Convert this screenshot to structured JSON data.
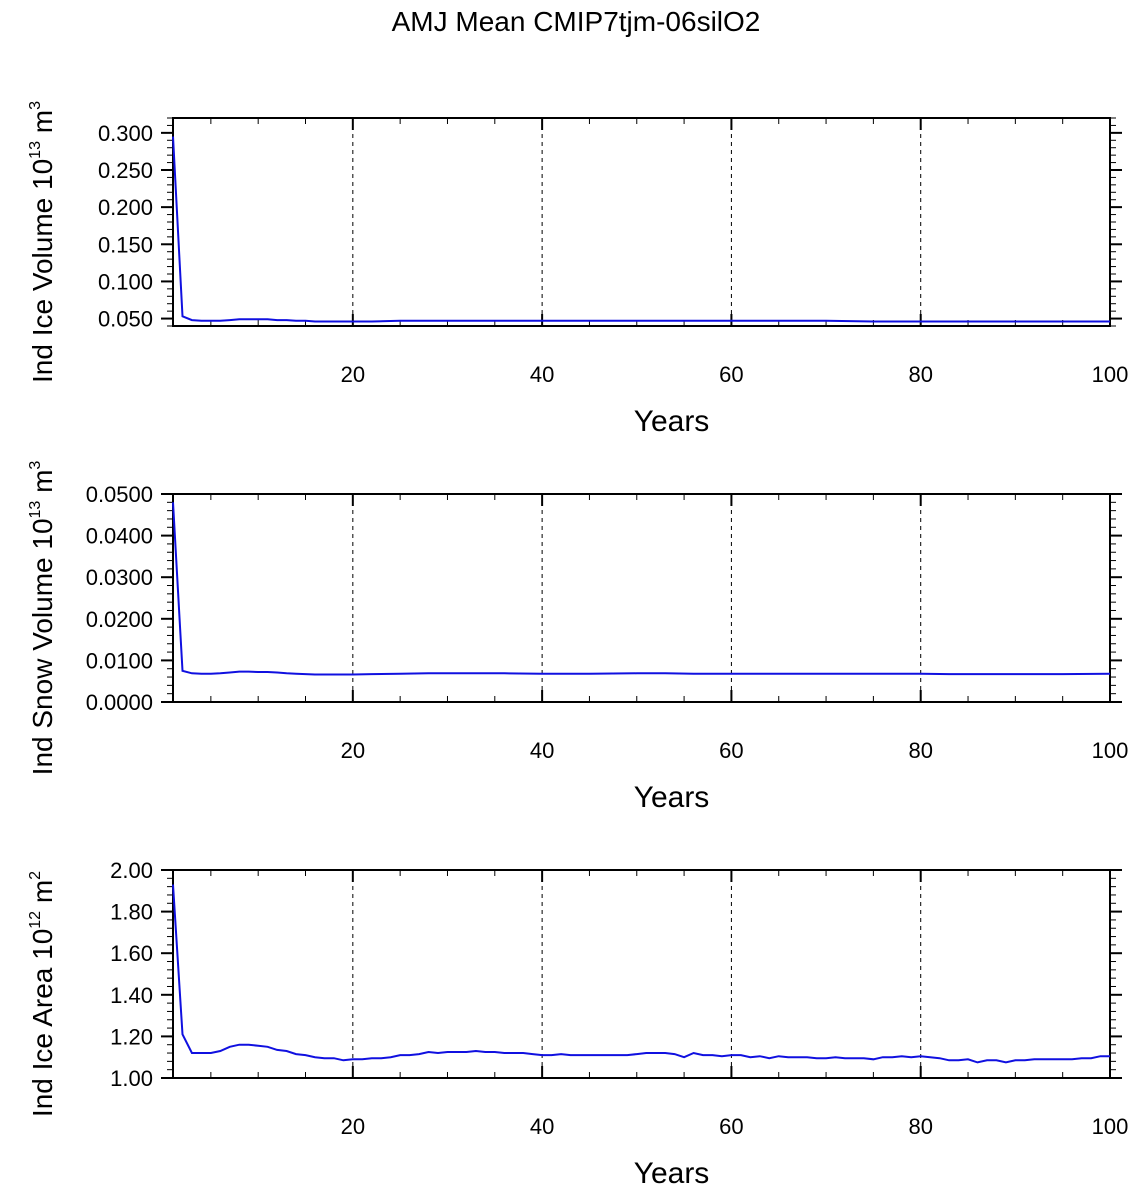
{
  "title": "AMJ Mean CMIP7tjm-06silO2",
  "colors": {
    "line": "#1010e0",
    "axis": "#000000",
    "grid": "#000000"
  },
  "chart_data": [
    {
      "type": "line",
      "ylabel": {
        "main": "Ind Ice Volume 10",
        "sup": "13",
        "unit": " m",
        "unit_sup": "3"
      },
      "xlabel": "Years",
      "xlim": [
        1,
        100
      ],
      "ylim": [
        0.04,
        0.32
      ],
      "xticks": [
        "20",
        "40",
        "60",
        "80",
        "100"
      ],
      "xtick_values": [
        20,
        40,
        60,
        80,
        100
      ],
      "yticks": [
        "0.050",
        "0.100",
        "0.150",
        "0.200",
        "0.250",
        "0.300"
      ],
      "ytick_values": [
        0.05,
        0.1,
        0.15,
        0.2,
        0.25,
        0.3
      ],
      "grid": "vertical dashed at x ticks",
      "x": [
        1,
        2,
        3,
        4,
        5,
        6,
        7,
        8,
        9,
        10,
        11,
        12,
        13,
        14,
        15,
        16,
        17,
        18,
        19,
        20,
        22,
        25,
        28,
        30,
        33,
        36,
        40,
        45,
        50,
        53,
        56,
        60,
        65,
        70,
        75,
        80,
        83,
        86,
        90,
        95,
        100
      ],
      "values": [
        0.295,
        0.053,
        0.048,
        0.047,
        0.047,
        0.047,
        0.048,
        0.049,
        0.049,
        0.049,
        0.049,
        0.048,
        0.048,
        0.047,
        0.047,
        0.046,
        0.046,
        0.046,
        0.046,
        0.046,
        0.046,
        0.047,
        0.047,
        0.047,
        0.047,
        0.047,
        0.047,
        0.047,
        0.047,
        0.047,
        0.047,
        0.047,
        0.047,
        0.047,
        0.046,
        0.046,
        0.046,
        0.046,
        0.046,
        0.046,
        0.046
      ]
    },
    {
      "type": "line",
      "ylabel": {
        "main": "Ind Snow Volume 10",
        "sup": "13",
        "unit": " m",
        "unit_sup": "3"
      },
      "xlabel": "Years",
      "xlim": [
        1,
        100
      ],
      "ylim": [
        0.0,
        0.05
      ],
      "xticks": [
        "20",
        "40",
        "60",
        "80",
        "100"
      ],
      "xtick_values": [
        20,
        40,
        60,
        80,
        100
      ],
      "yticks": [
        "0.0000",
        "0.0100",
        "0.0200",
        "0.0300",
        "0.0400",
        "0.0500"
      ],
      "ytick_values": [
        0.0,
        0.01,
        0.02,
        0.03,
        0.04,
        0.05
      ],
      "grid": "vertical dashed at x ticks",
      "x": [
        1,
        2,
        3,
        4,
        5,
        6,
        7,
        8,
        9,
        10,
        11,
        12,
        13,
        14,
        15,
        16,
        17,
        18,
        19,
        20,
        22,
        25,
        28,
        30,
        33,
        36,
        40,
        45,
        50,
        53,
        56,
        60,
        65,
        70,
        75,
        80,
        83,
        86,
        90,
        95,
        100
      ],
      "values": [
        0.048,
        0.0075,
        0.0069,
        0.0068,
        0.0068,
        0.0069,
        0.0071,
        0.0073,
        0.0073,
        0.0072,
        0.0072,
        0.0071,
        0.0069,
        0.0068,
        0.0067,
        0.0066,
        0.0066,
        0.0066,
        0.0066,
        0.0066,
        0.0067,
        0.0068,
        0.0069,
        0.0069,
        0.0069,
        0.0069,
        0.0068,
        0.0068,
        0.0069,
        0.0069,
        0.0068,
        0.0068,
        0.0068,
        0.0068,
        0.0068,
        0.0068,
        0.0067,
        0.0067,
        0.0067,
        0.0067,
        0.0068
      ]
    },
    {
      "type": "line",
      "ylabel": {
        "main": "Ind Ice Area 10",
        "sup": "12",
        "unit": " m",
        "unit_sup": "2"
      },
      "xlabel": "Years",
      "xlim": [
        1,
        100
      ],
      "ylim": [
        1.0,
        2.0
      ],
      "xticks": [
        "20",
        "40",
        "60",
        "80",
        "100"
      ],
      "xtick_values": [
        20,
        40,
        60,
        80,
        100
      ],
      "yticks": [
        "1.00",
        "1.20",
        "1.40",
        "1.60",
        "1.80",
        "2.00"
      ],
      "ytick_values": [
        1.0,
        1.2,
        1.4,
        1.6,
        1.8,
        2.0
      ],
      "grid": "vertical dashed at x ticks",
      "x": [
        1,
        2,
        3,
        4,
        5,
        6,
        7,
        8,
        9,
        10,
        11,
        12,
        13,
        14,
        15,
        16,
        17,
        18,
        19,
        20,
        21,
        22,
        23,
        24,
        25,
        26,
        27,
        28,
        29,
        30,
        31,
        32,
        33,
        34,
        35,
        36,
        37,
        38,
        39,
        40,
        41,
        42,
        43,
        44,
        45,
        46,
        47,
        48,
        49,
        50,
        51,
        52,
        53,
        54,
        55,
        56,
        57,
        58,
        59,
        60,
        61,
        62,
        63,
        64,
        65,
        66,
        67,
        68,
        69,
        70,
        71,
        72,
        73,
        74,
        75,
        76,
        77,
        78,
        79,
        80,
        81,
        82,
        83,
        84,
        85,
        86,
        87,
        88,
        89,
        90,
        91,
        92,
        93,
        94,
        95,
        96,
        97,
        98,
        99,
        100
      ],
      "values": [
        1.93,
        1.21,
        1.12,
        1.12,
        1.12,
        1.13,
        1.15,
        1.16,
        1.16,
        1.155,
        1.15,
        1.135,
        1.13,
        1.115,
        1.11,
        1.1,
        1.095,
        1.095,
        1.085,
        1.09,
        1.09,
        1.095,
        1.095,
        1.1,
        1.11,
        1.11,
        1.115,
        1.125,
        1.12,
        1.125,
        1.125,
        1.125,
        1.13,
        1.125,
        1.125,
        1.12,
        1.12,
        1.12,
        1.115,
        1.11,
        1.11,
        1.115,
        1.11,
        1.11,
        1.11,
        1.11,
        1.11,
        1.11,
        1.11,
        1.115,
        1.12,
        1.12,
        1.12,
        1.115,
        1.1,
        1.12,
        1.11,
        1.11,
        1.105,
        1.11,
        1.11,
        1.1,
        1.105,
        1.095,
        1.105,
        1.1,
        1.1,
        1.1,
        1.095,
        1.095,
        1.1,
        1.095,
        1.095,
        1.095,
        1.09,
        1.1,
        1.1,
        1.105,
        1.1,
        1.105,
        1.1,
        1.095,
        1.085,
        1.085,
        1.09,
        1.075,
        1.085,
        1.085,
        1.075,
        1.085,
        1.085,
        1.09,
        1.09,
        1.09,
        1.09,
        1.09,
        1.095,
        1.095,
        1.105,
        1.105
      ]
    }
  ]
}
